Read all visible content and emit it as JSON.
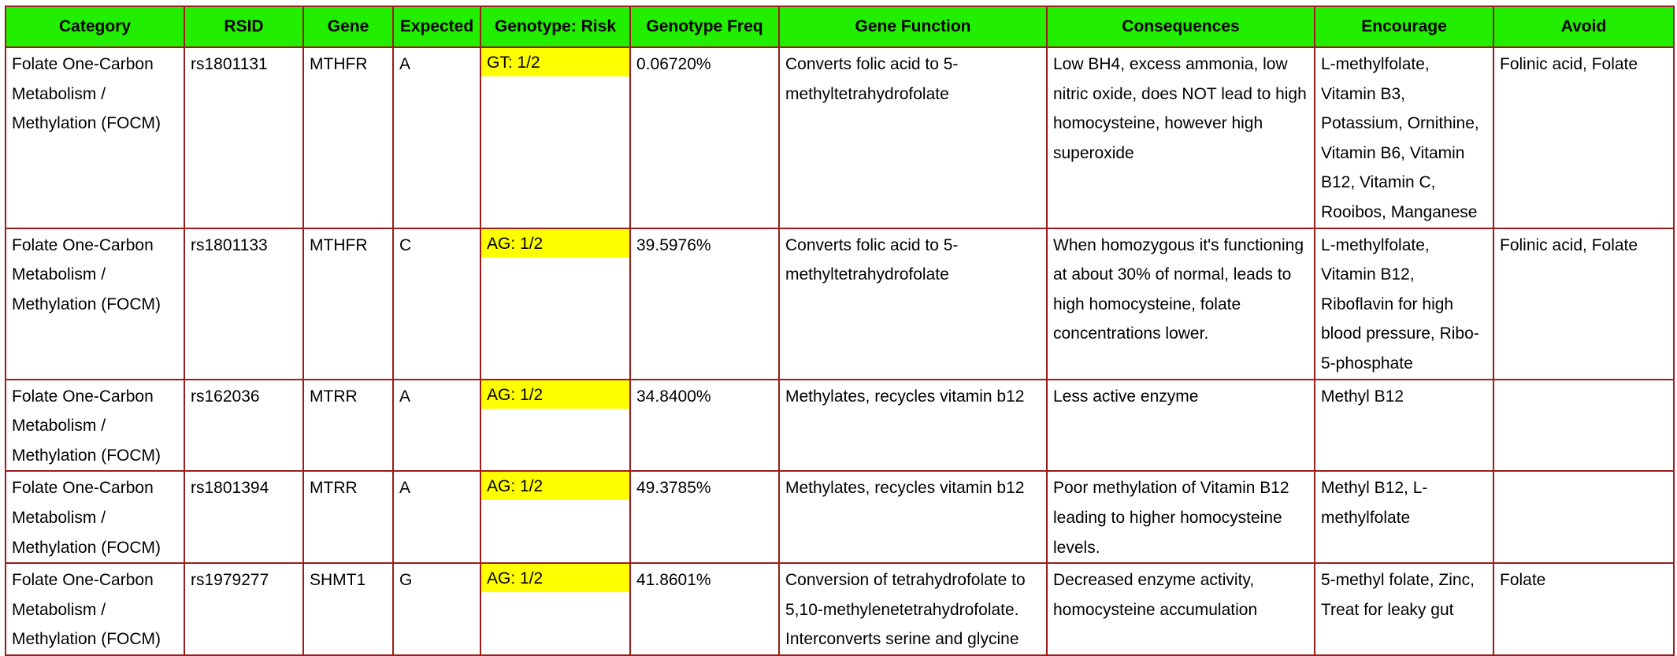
{
  "table": {
    "headers": [
      "Category",
      "RSID",
      "Gene",
      "Expected",
      "Genotype: Risk",
      "Genotype Freq",
      "Gene Function",
      "Consequences",
      "Encourage",
      "Avoid"
    ],
    "rows": [
      {
        "category": "Folate One-Carbon Metabolism / Methylation (FOCM)",
        "rsid": "rs1801131",
        "gene": "MTHFR",
        "expected": "A",
        "risk": "GT: 1/2",
        "freq": "0.06720%",
        "function": "Converts folic acid to 5-methyltetrahydrofolate",
        "consequences": "Low BH4, excess ammonia, low nitric oxide, does NOT lead to high homocysteine, however high superoxide",
        "encourage": "L-methylfolate, Vitamin B3, Potassium, Ornithine, Vitamin B6, Vitamin B12, Vitamin C, Rooibos, Manganese",
        "avoid": "Folinic acid, Folate"
      },
      {
        "category": "Folate One-Carbon Metabolism / Methylation (FOCM)",
        "rsid": "rs1801133",
        "gene": "MTHFR",
        "expected": "C",
        "risk": "AG: 1/2",
        "freq": "39.5976%",
        "function": "Converts folic acid to 5-methyltetrahydrofolate",
        "consequences": "When homozygous it's functioning at about 30% of normal, leads to high homocysteine,  folate concentrations lower.",
        "encourage": "L-methylfolate, Vitamin B12, Riboflavin for high blood pressure, Ribo-5-phosphate",
        "avoid": "Folinic acid, Folate"
      },
      {
        "category": "Folate One-Carbon Metabolism / Methylation (FOCM)",
        "rsid": "rs162036",
        "gene": "MTRR",
        "expected": "A",
        "risk": "AG: 1/2",
        "freq": "34.8400%",
        "function": "Methylates, recycles vitamin b12",
        "consequences": "Less active enzyme",
        "encourage": "Methyl B12",
        "avoid": ""
      },
      {
        "category": "Folate One-Carbon Metabolism / Methylation (FOCM)",
        "rsid": "rs1801394",
        "gene": "MTRR",
        "expected": "A",
        "risk": "AG: 1/2",
        "freq": "49.3785%",
        "function": "Methylates, recycles vitamin b12",
        "consequences": "Poor methylation of Vitamin B12 leading to higher homocysteine levels.",
        "encourage": "Methyl B12, L-methylfolate",
        "avoid": ""
      },
      {
        "category": "Folate One-Carbon Metabolism / Methylation (FOCM)",
        "rsid": "rs1979277",
        "gene": "SHMT1",
        "expected": "G",
        "risk": "AG: 1/2",
        "freq": "41.8601%",
        "function": "Conversion of tetrahydrofolate to 5,10-methylenetetrahydrofolate. Interconverts serine and glycine",
        "consequences": "Decreased enzyme activity, homocysteine accumulation",
        "encourage": "5-methyl folate, Zinc, Treat for leaky gut",
        "avoid": "Folate"
      }
    ]
  },
  "colors": {
    "header_bg": "#22ee00",
    "border": "#9b1c1c",
    "risk_highlight": "#ffff00"
  }
}
